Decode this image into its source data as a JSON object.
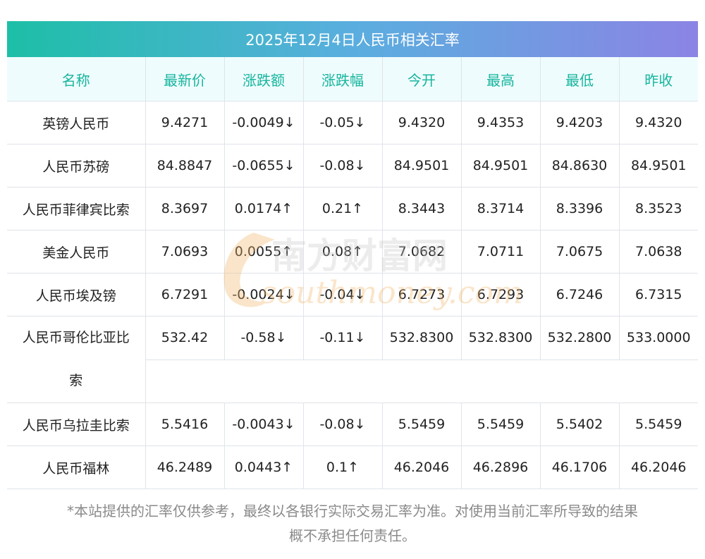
{
  "title": "2025年12月4日人民币相关汇率",
  "columns": [
    "名称",
    "最新价",
    "涨跌额",
    "涨跌幅",
    "今开",
    "最高",
    "最低",
    "昨收"
  ],
  "rows": [
    {
      "name": "英镑人民币",
      "latest": "9.4271",
      "change": "-0.0049↓",
      "pct": "-0.05↓",
      "open": "9.4320",
      "high": "9.4353",
      "low": "9.4203",
      "prev": "9.4320",
      "dir": "down"
    },
    {
      "name": "人民币苏磅",
      "latest": "84.8847",
      "change": "-0.0655↓",
      "pct": "-0.08↓",
      "open": "84.9501",
      "high": "84.9501",
      "low": "84.8630",
      "prev": "84.9501",
      "dir": "down"
    },
    {
      "name": "人民币菲律宾比索",
      "latest": "8.3697",
      "change": "0.0174↑",
      "pct": "0.21↑",
      "open": "8.3443",
      "high": "8.3714",
      "low": "8.3396",
      "prev": "8.3523",
      "dir": "up"
    },
    {
      "name": "美金人民币",
      "latest": "7.0693",
      "change": "0.0055↑",
      "pct": "0.08↑",
      "open": "7.0682",
      "high": "7.0711",
      "low": "7.0675",
      "prev": "7.0638",
      "dir": "up"
    },
    {
      "name": "人民币埃及镑",
      "latest": "6.7291",
      "change": "-0.0024↓",
      "pct": "-0.04↓",
      "open": "6.7273",
      "high": "6.7293",
      "low": "6.7246",
      "prev": "6.7315",
      "dir": "down"
    },
    {
      "name_line1": "人民币哥伦比亚比",
      "name_line2": "索",
      "latest": "532.42",
      "change": "-0.58↓",
      "pct": "-0.11↓",
      "open": "532.8300",
      "high": "532.8300",
      "low": "532.2800",
      "prev": "533.0000",
      "dir": "down"
    },
    {
      "name": "人民币乌拉圭比索",
      "latest": "5.5416",
      "change": "-0.0043↓",
      "pct": "-0.08↓",
      "open": "5.5459",
      "high": "5.5459",
      "low": "5.5402",
      "prev": "5.5459",
      "dir": "down"
    },
    {
      "name": "人民币福林",
      "latest": "46.2489",
      "change": "0.0443↑",
      "pct": "0.1↑",
      "open": "46.2046",
      "high": "46.2896",
      "low": "46.1706",
      "prev": "46.2046",
      "dir": "up"
    }
  ],
  "watermark": {
    "cn": "南方财富网",
    "en": "southmoney.com"
  },
  "footnote": {
    "line1": "*本站提供的汇率仅供参考，最终以各银行实际交易汇率为准。对使用当前汇率所导致的结果",
    "line2": "概不承担任何责任。"
  },
  "colors": {
    "up": "#ee2222",
    "down": "#1a8c1a",
    "header_text": "#16b59e",
    "accent_start": "#1dbfa7",
    "accent_end": "#8b84e4"
  }
}
